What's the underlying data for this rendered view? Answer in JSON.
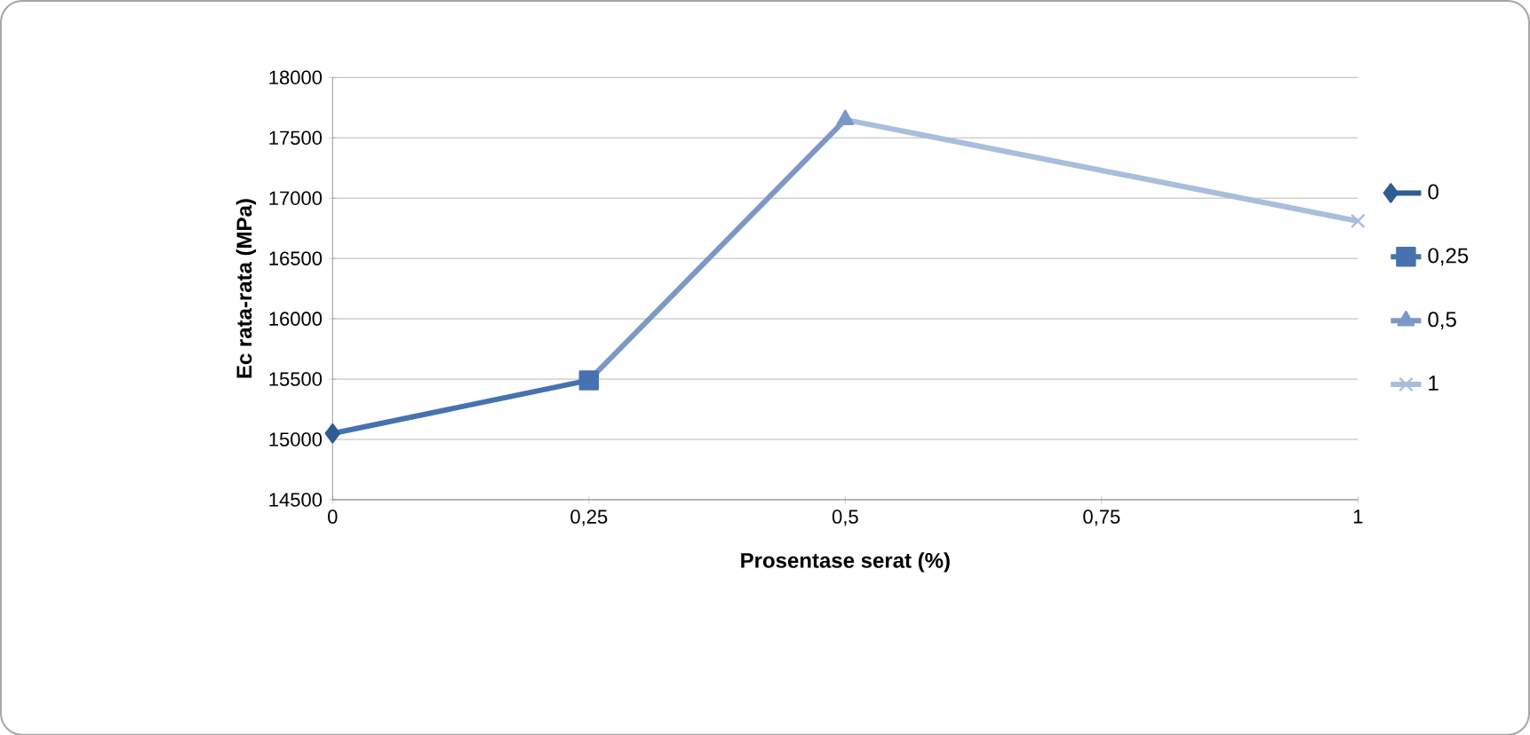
{
  "chart_data": {
    "type": "line",
    "xlabel": "Prosentase serat (%)",
    "ylabel": "Ec rata-rata (MPa)",
    "xlim": [
      0,
      1
    ],
    "ylim": [
      14500,
      18000
    ],
    "xticks": [
      {
        "value": 0,
        "label": "0"
      },
      {
        "value": 0.25,
        "label": "0,25"
      },
      {
        "value": 0.5,
        "label": "0,5"
      },
      {
        "value": 0.75,
        "label": "0,75"
      },
      {
        "value": 1,
        "label": "1"
      }
    ],
    "yticks": [
      14500,
      15000,
      15500,
      16000,
      16500,
      17000,
      17500,
      18000
    ],
    "grid": "y",
    "legend": "right",
    "series": [
      {
        "name": "0",
        "color": "#2f5d92",
        "marker": "diamond",
        "x": [
          0
        ],
        "values": [
          15050
        ]
      },
      {
        "name": "0,25",
        "color": "#4673b0",
        "marker": "square",
        "x": [
          0,
          0.25
        ],
        "values": [
          15050,
          15490
        ]
      },
      {
        "name": "0,5",
        "color": "#7e97c8",
        "marker": "triangle",
        "x": [
          0.25,
          0.5
        ],
        "values": [
          15490,
          17650
        ]
      },
      {
        "name": "1",
        "color": "#a9bddc",
        "marker": "cross",
        "x": [
          0.5,
          1
        ],
        "values": [
          17650,
          16810
        ]
      }
    ]
  }
}
